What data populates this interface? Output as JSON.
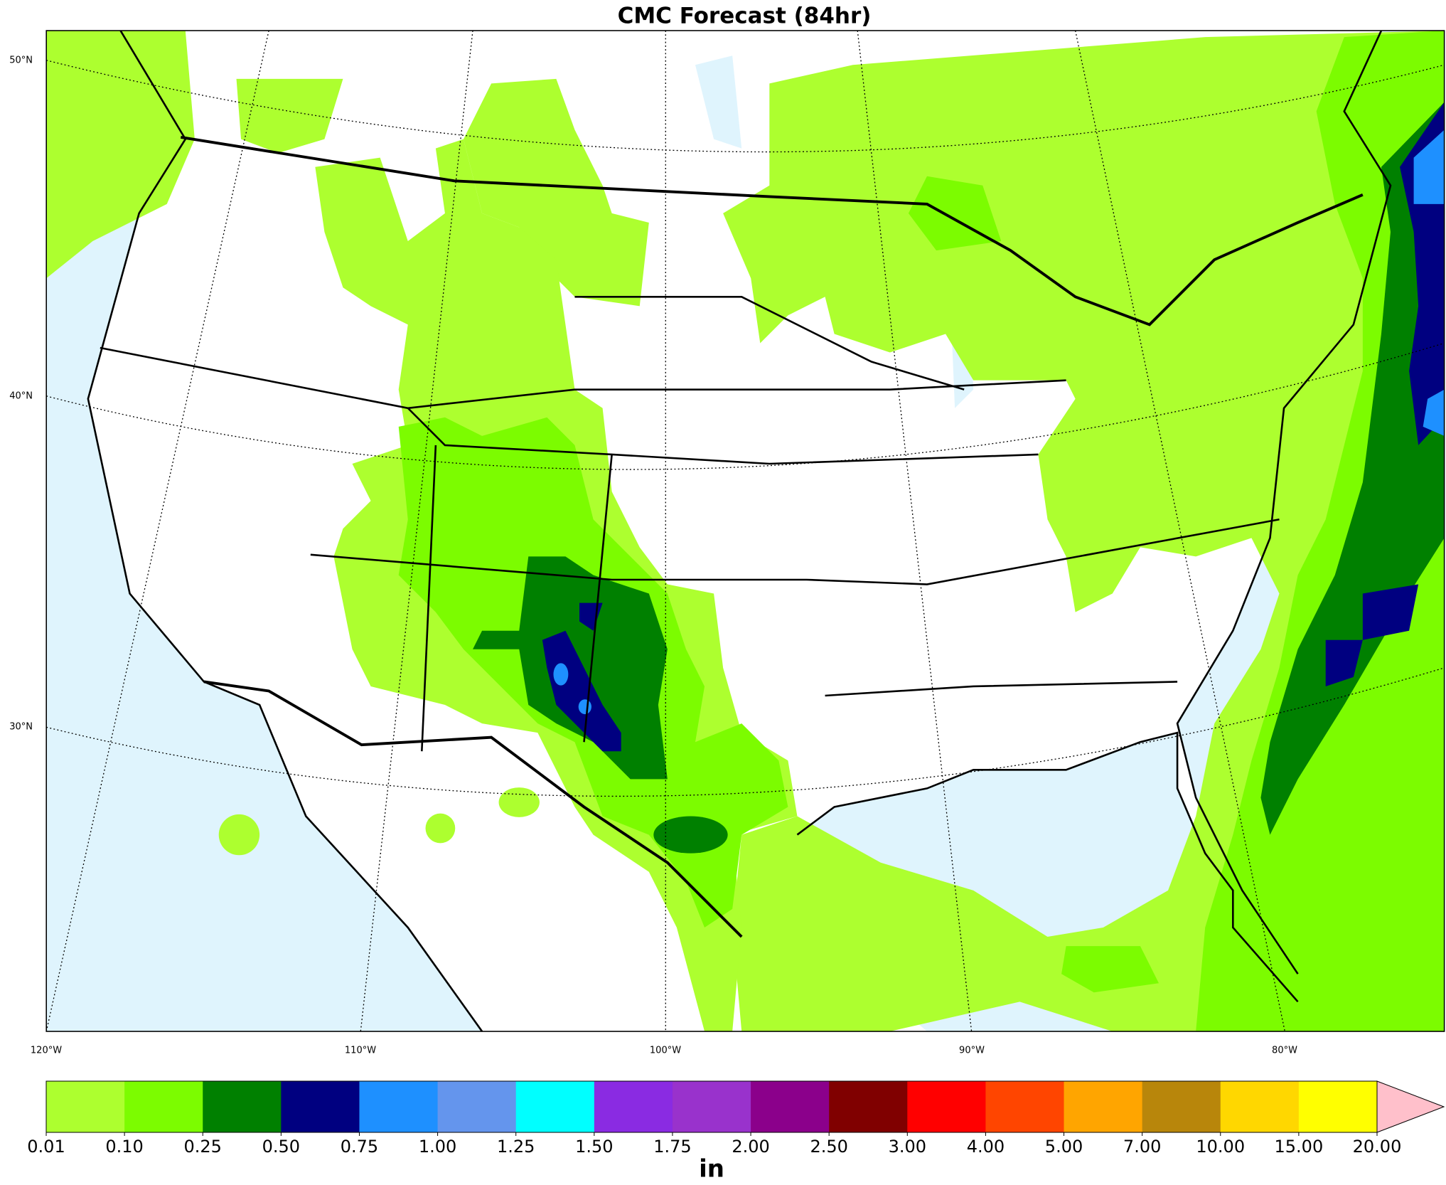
{
  "title": "CMC Forecast (84hr)",
  "lat_labels": [
    "50°N",
    "40°N",
    "30°N"
  ],
  "lon_labels": [
    "120°W",
    "110°W",
    "100°W",
    "90°W",
    "80°W"
  ],
  "colorbar": {
    "unit": "in",
    "levels": [
      {
        "value": 0.01,
        "label": "0.01"
      },
      {
        "value": 0.1,
        "label": "0.10"
      },
      {
        "value": 0.25,
        "label": "0.25"
      },
      {
        "value": 0.5,
        "label": "0.50"
      },
      {
        "value": 0.75,
        "label": "0.75"
      },
      {
        "value": 1,
        "label": "1.00"
      },
      {
        "value": 1.25,
        "label": "1.25"
      },
      {
        "value": 1.5,
        "label": "1.50"
      },
      {
        "value": 1.75,
        "label": "1.75"
      },
      {
        "value": 2,
        "label": "2.00"
      },
      {
        "value": 2.5,
        "label": "2.50"
      },
      {
        "value": 3,
        "label": "3.00"
      },
      {
        "value": 4,
        "label": "4.00"
      },
      {
        "value": 5,
        "label": "5.00"
      },
      {
        "value": 7,
        "label": "7.00"
      },
      {
        "value": 10,
        "label": "10.00"
      },
      {
        "value": 15,
        "label": "15.00"
      },
      {
        "value": 20,
        "label": "20.00"
      }
    ],
    "colors": [
      "#adff2f",
      "#7cfc00",
      "#008000",
      "#000080",
      "#1e90ff",
      "#6495ed",
      "#00ffff",
      "#8a2be2",
      "#9932cc",
      "#8b008b",
      "#800000",
      "#ff0000",
      "#ff4500",
      "#ffa500",
      "#b8860b",
      "#ffd700",
      "#ffff00"
    ],
    "extend_color": "#ffc0cb"
  }
}
